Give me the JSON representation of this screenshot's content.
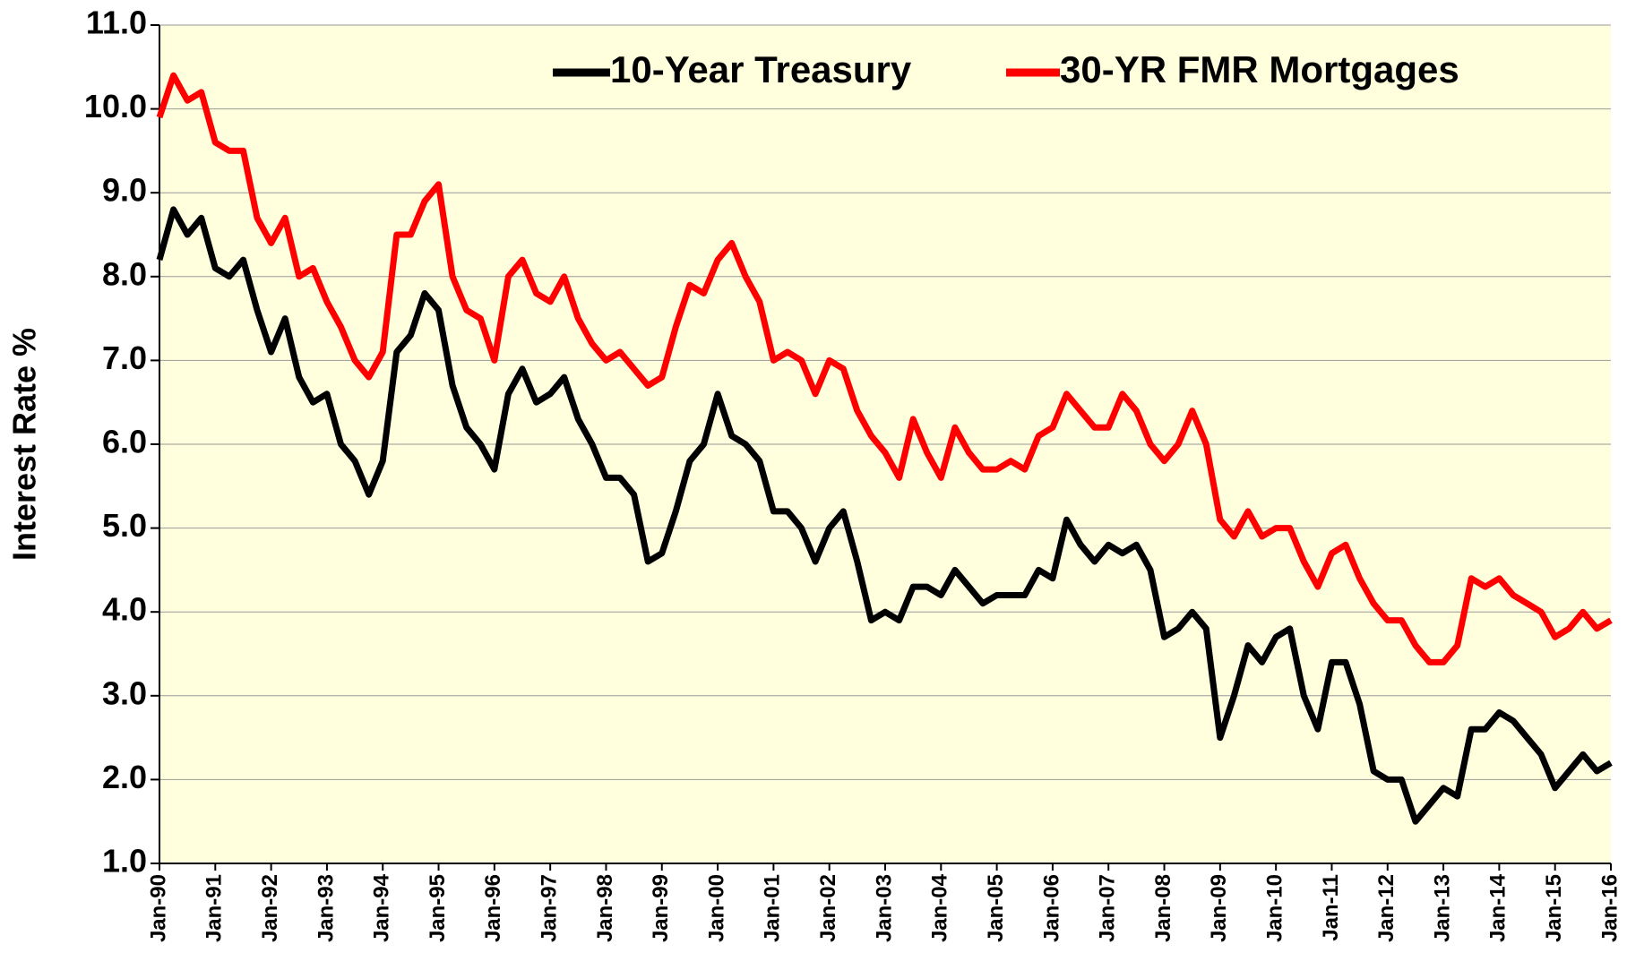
{
  "chart_data": {
    "type": "line",
    "y_label": "Interest Rate %",
    "categories": [
      "Jan-90",
      null,
      null,
      null,
      "Jan-91",
      null,
      null,
      null,
      "Jan-92",
      null,
      null,
      null,
      "Jan-93",
      null,
      null,
      null,
      "Jan-94",
      null,
      null,
      null,
      "Jan-95",
      null,
      null,
      null,
      "Jan-96",
      null,
      null,
      null,
      "Jan-97",
      null,
      null,
      null,
      "Jan-98",
      null,
      null,
      null,
      "Jan-99",
      null,
      null,
      null,
      "Jan-00",
      null,
      null,
      null,
      "Jan-01",
      null,
      null,
      null,
      "Jan-02",
      null,
      null,
      null,
      "Jan-03",
      null,
      null,
      null,
      "Jan-04",
      null,
      null,
      null,
      "Jan-05",
      null,
      null,
      null,
      "Jan-06",
      null,
      null,
      null,
      "Jan-07",
      null,
      null,
      null,
      "Jan-08",
      null,
      null,
      null,
      "Jan-09",
      null,
      null,
      null,
      "Jan-10",
      null,
      null,
      null,
      "Jan-11",
      null,
      null,
      null,
      "Jan-12",
      null,
      null,
      null,
      "Jan-13",
      null,
      null,
      null,
      "Jan-14",
      null,
      null,
      null,
      "Jan-15",
      null,
      null,
      null,
      "Jan-16"
    ],
    "series": [
      {
        "name": "10-Year Treasury",
        "color": "#000000",
        "values": [
          8.2,
          8.8,
          8.5,
          8.7,
          8.1,
          8.0,
          8.2,
          7.6,
          7.1,
          7.5,
          6.8,
          6.5,
          6.6,
          6.0,
          5.8,
          5.4,
          5.8,
          7.1,
          7.3,
          7.8,
          7.6,
          6.7,
          6.2,
          6.0,
          5.7,
          6.6,
          6.9,
          6.5,
          6.6,
          6.8,
          6.3,
          6.0,
          5.6,
          5.6,
          5.4,
          4.6,
          4.7,
          5.2,
          5.8,
          6.0,
          6.6,
          6.1,
          6.0,
          5.8,
          5.2,
          5.2,
          5.0,
          4.6,
          5.0,
          5.2,
          4.6,
          3.9,
          4.0,
          3.9,
          4.3,
          4.3,
          4.2,
          4.5,
          4.3,
          4.1,
          4.2,
          4.2,
          4.2,
          4.5,
          4.4,
          5.1,
          4.8,
          4.6,
          4.8,
          4.7,
          4.8,
          4.5,
          3.7,
          3.8,
          4.0,
          3.8,
          2.5,
          3.0,
          3.6,
          3.4,
          3.7,
          3.8,
          3.0,
          2.6,
          3.4,
          3.4,
          2.9,
          2.1,
          2.0,
          2.0,
          1.5,
          1.7,
          1.9,
          1.8,
          2.6,
          2.6,
          2.8,
          2.7,
          2.5,
          2.3,
          1.9,
          2.1,
          2.3,
          2.1,
          2.2
        ]
      },
      {
        "name": "30-YR FMR Mortgages",
        "color": "#ff0000",
        "values": [
          9.9,
          10.4,
          10.1,
          10.2,
          9.6,
          9.5,
          9.5,
          8.7,
          8.4,
          8.7,
          8.0,
          8.1,
          7.7,
          7.4,
          7.0,
          6.8,
          7.1,
          8.5,
          8.5,
          8.9,
          9.1,
          8.0,
          7.6,
          7.5,
          7.0,
          8.0,
          8.2,
          7.8,
          7.7,
          8.0,
          7.5,
          7.2,
          7.0,
          7.1,
          6.9,
          6.7,
          6.8,
          7.4,
          7.9,
          7.8,
          8.2,
          8.4,
          8.0,
          7.7,
          7.0,
          7.1,
          7.0,
          6.6,
          7.0,
          6.9,
          6.4,
          6.1,
          5.9,
          5.6,
          6.3,
          5.9,
          5.6,
          6.2,
          5.9,
          5.7,
          5.7,
          5.8,
          5.7,
          6.1,
          6.2,
          6.6,
          6.4,
          6.2,
          6.2,
          6.6,
          6.4,
          6.0,
          5.8,
          6.0,
          6.4,
          6.0,
          5.1,
          4.9,
          5.2,
          4.9,
          5.0,
          5.0,
          4.6,
          4.3,
          4.7,
          4.8,
          4.4,
          4.1,
          3.9,
          3.9,
          3.6,
          3.4,
          3.4,
          3.6,
          4.4,
          4.3,
          4.4,
          4.2,
          4.1,
          4.0,
          3.7,
          3.8,
          4.0,
          3.8,
          3.9
        ]
      }
    ],
    "ylim": [
      1,
      11
    ],
    "yticks": [
      {
        "value": 1,
        "label": "1.0"
      },
      {
        "value": 2,
        "label": "2.0"
      },
      {
        "value": 3,
        "label": "3.0"
      },
      {
        "value": 4,
        "label": "4.0"
      },
      {
        "value": 5,
        "label": "5.0"
      },
      {
        "value": 6,
        "label": "6.0"
      },
      {
        "value": 7,
        "label": "7.0"
      },
      {
        "value": 8,
        "label": "8.0"
      },
      {
        "value": 9,
        "label": "9.0"
      },
      {
        "value": 10,
        "label": "10.0"
      },
      {
        "value": 11,
        "label": "11.0"
      }
    ],
    "grid": true,
    "background": "#ffffdd",
    "legend": "top"
  }
}
